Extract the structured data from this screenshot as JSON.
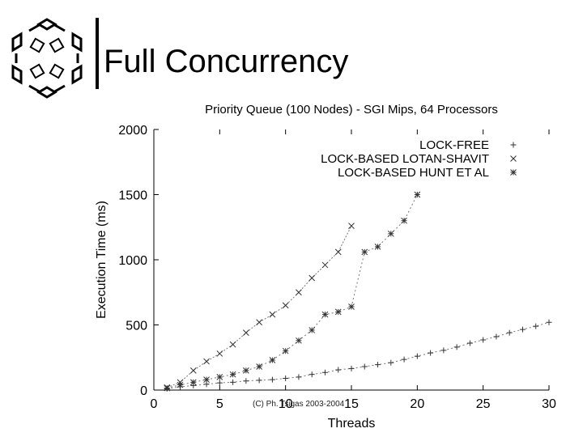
{
  "slide": {
    "title": "Full Concurrency",
    "copyright": "(C) Ph. Tsigas 2003-2004"
  },
  "chart_data": {
    "type": "line",
    "title": "Priority Queue (100 Nodes) - SGI Mips, 64 Processors",
    "xlabel": "Threads",
    "ylabel": "Execution Time (ms)",
    "xlim": [
      0,
      30
    ],
    "ylim": [
      0,
      2000
    ],
    "xticks": [
      0,
      5,
      10,
      15,
      20,
      25,
      30
    ],
    "yticks": [
      0,
      500,
      1000,
      1500,
      2000
    ],
    "legend_position": "top-right",
    "series": [
      {
        "name": "LOCK-FREE",
        "marker": "+",
        "x": [
          1,
          2,
          3,
          4,
          5,
          6,
          7,
          8,
          9,
          10,
          11,
          12,
          13,
          14,
          15,
          16,
          17,
          18,
          19,
          20,
          21,
          22,
          23,
          24,
          25,
          26,
          27,
          28,
          29,
          30
        ],
        "y": [
          10,
          25,
          35,
          45,
          55,
          60,
          70,
          75,
          80,
          90,
          100,
          120,
          135,
          155,
          165,
          180,
          195,
          210,
          235,
          260,
          285,
          305,
          330,
          360,
          385,
          410,
          440,
          465,
          490,
          520
        ]
      },
      {
        "name": "LOCK-BASED LOTAN-SHAVIT",
        "marker": "x",
        "x": [
          1,
          2,
          3,
          4,
          5,
          6,
          7,
          8,
          9,
          10,
          11,
          12,
          13,
          14,
          15
        ],
        "y": [
          20,
          60,
          150,
          220,
          280,
          350,
          440,
          520,
          580,
          650,
          750,
          860,
          960,
          1060,
          1260
        ]
      },
      {
        "name": "LOCK-BASED HUNT ET AL",
        "marker": "*",
        "x": [
          1,
          2,
          3,
          4,
          5,
          6,
          7,
          8,
          9,
          10,
          11,
          12,
          13,
          14,
          15,
          16,
          17,
          18,
          19,
          20
        ],
        "y": [
          15,
          40,
          60,
          80,
          100,
          120,
          150,
          180,
          230,
          300,
          380,
          460,
          580,
          600,
          640,
          1060,
          1100,
          1200,
          1300,
          1500
        ]
      }
    ]
  }
}
